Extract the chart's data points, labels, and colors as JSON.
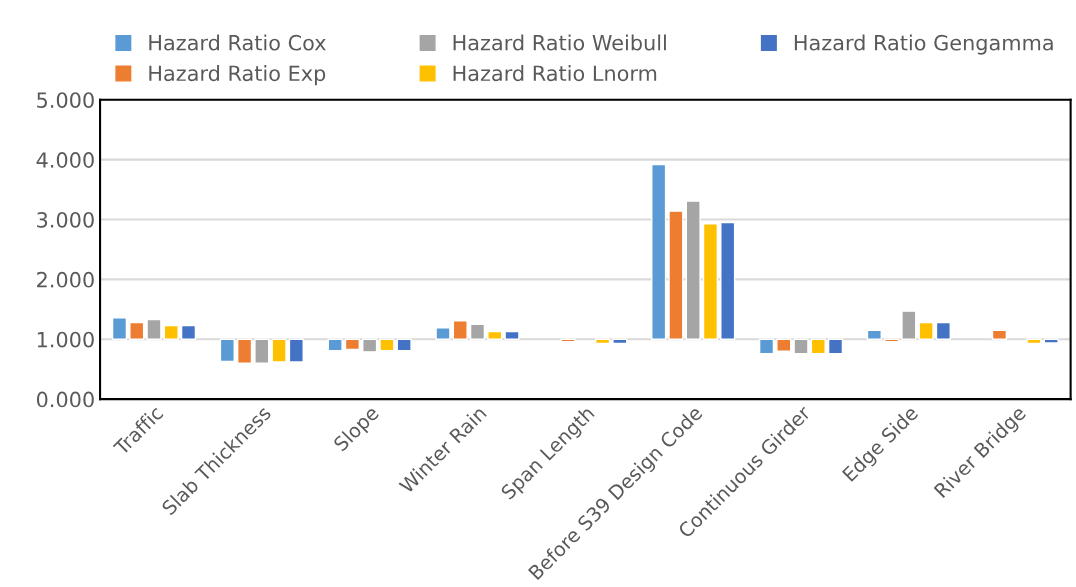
{
  "chart_data": {
    "type": "bar",
    "categories": [
      "Traffic",
      "Slab Thickness",
      "Slope",
      "Winter Rain",
      "Span Length",
      "Before S39 Design Code",
      "Continuous Girder",
      "Edge Side",
      "River Bridge"
    ],
    "series": [
      {
        "name": "Hazard Ratio Cox",
        "color": "#5b9bd5",
        "base": [
          1,
          1,
          1,
          1,
          null,
          1,
          1,
          1,
          null
        ],
        "values": [
          0.36,
          -0.37,
          -0.19,
          0.19,
          null,
          2.92,
          -0.24,
          0.15,
          null
        ]
      },
      {
        "name": "Hazard Ratio Exp",
        "color": "#ed7d31",
        "base": [
          1,
          1,
          1,
          1,
          1,
          1,
          1,
          1,
          1
        ],
        "values": [
          0.28,
          -0.4,
          -0.17,
          0.31,
          -0.04,
          2.14,
          -0.2,
          -0.04,
          0.15
        ]
      },
      {
        "name": "Hazard Ratio Weibull",
        "color": "#a5a5a5",
        "base": [
          1,
          1,
          1,
          1,
          null,
          1,
          1,
          1,
          null
        ],
        "values": [
          0.33,
          -0.4,
          -0.21,
          0.25,
          null,
          2.31,
          -0.24,
          0.47,
          null
        ]
      },
      {
        "name": "Hazard Ratio Lnorm",
        "color": "#ffc000",
        "base": [
          1,
          1,
          1,
          1,
          1,
          1,
          1,
          1,
          1
        ],
        "values": [
          0.23,
          -0.38,
          -0.19,
          0.13,
          -0.07,
          1.93,
          -0.24,
          0.28,
          -0.07
        ]
      },
      {
        "name": "Hazard Ratio Gengamma",
        "color": "#4472c4",
        "base": [
          1,
          1,
          1,
          1,
          1,
          1,
          1,
          1,
          1
        ],
        "values": [
          0.23,
          -0.38,
          -0.19,
          0.13,
          -0.07,
          1.95,
          -0.24,
          0.28,
          -0.06
        ]
      }
    ],
    "ylim": [
      0,
      5
    ],
    "yticks": [
      {
        "value": 0,
        "label": "0.000"
      },
      {
        "value": 1,
        "label": "1.000"
      },
      {
        "value": 2,
        "label": "2.000"
      },
      {
        "value": 3,
        "label": "3.000"
      },
      {
        "value": 4,
        "label": "4.000"
      },
      {
        "value": 5,
        "label": "5.000"
      }
    ],
    "grid": "y",
    "legend": "top"
  }
}
